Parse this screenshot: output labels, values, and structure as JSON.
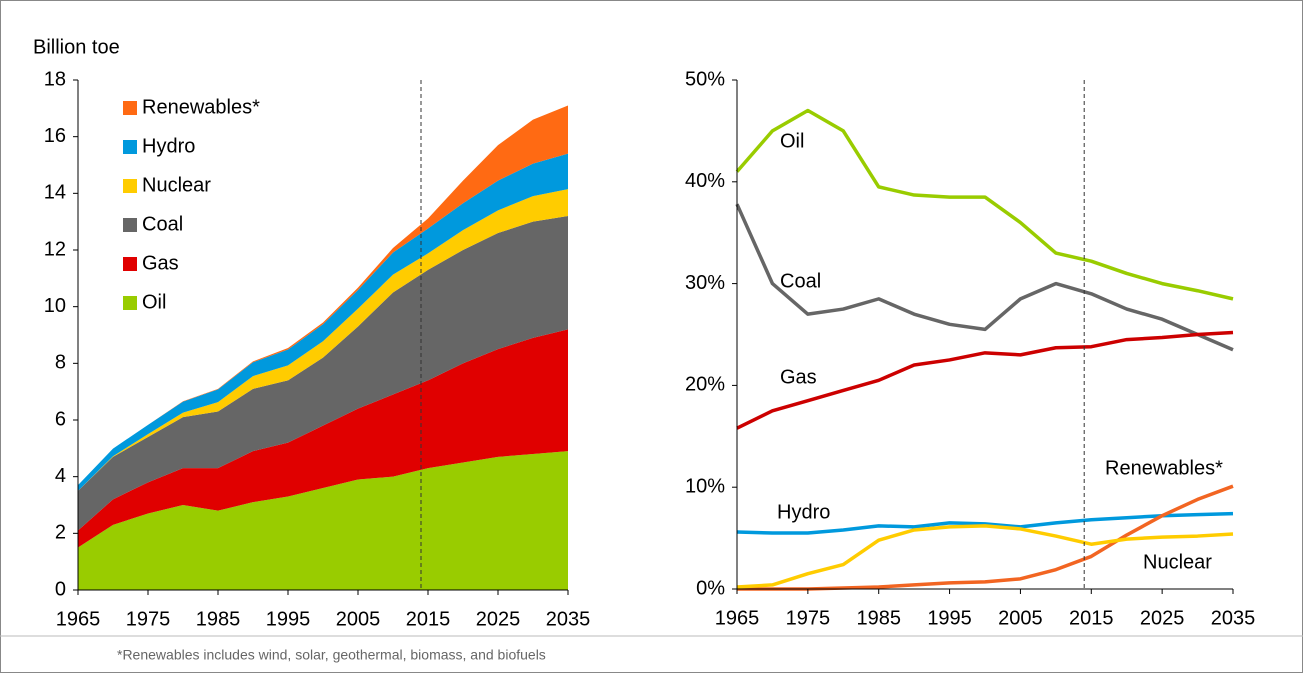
{
  "chart_data": [
    {
      "type": "area",
      "stacked": true,
      "y_label": "Billion toe",
      "x": [
        1965,
        1970,
        1975,
        1980,
        1985,
        1990,
        1995,
        2000,
        2005,
        2010,
        2015,
        2020,
        2025,
        2030,
        2035
      ],
      "xlim": [
        1965,
        2035
      ],
      "xticks": [
        1965,
        1975,
        1985,
        1995,
        2005,
        2015,
        2025,
        2035
      ],
      "ylim": [
        0,
        18
      ],
      "yticks": [
        0,
        2,
        4,
        6,
        8,
        10,
        12,
        14,
        16,
        18
      ],
      "vline": 2014,
      "legend": "upper left",
      "series": [
        {
          "name": "Oil",
          "color": "#99cc00",
          "values": [
            1.5,
            2.3,
            2.7,
            3.0,
            2.8,
            3.1,
            3.3,
            3.6,
            3.9,
            4.0,
            4.3,
            4.5,
            4.7,
            4.8,
            4.9
          ]
        },
        {
          "name": "Gas",
          "color": "#e00000",
          "values": [
            0.6,
            0.9,
            1.1,
            1.3,
            1.5,
            1.8,
            1.9,
            2.2,
            2.5,
            2.9,
            3.1,
            3.5,
            3.8,
            4.1,
            4.3
          ]
        },
        {
          "name": "Coal",
          "color": "#666666",
          "values": [
            1.4,
            1.5,
            1.6,
            1.8,
            2.0,
            2.2,
            2.2,
            2.4,
            2.9,
            3.6,
            3.9,
            4.0,
            4.1,
            4.1,
            4.0
          ]
        },
        {
          "name": "Nuclear",
          "color": "#ffcc00",
          "values": [
            0.0,
            0.02,
            0.1,
            0.16,
            0.33,
            0.45,
            0.53,
            0.58,
            0.63,
            0.63,
            0.58,
            0.7,
            0.8,
            0.9,
            0.95
          ]
        },
        {
          "name": "Hydro",
          "color": "#0099dd",
          "values": [
            0.2,
            0.27,
            0.33,
            0.39,
            0.45,
            0.49,
            0.56,
            0.6,
            0.66,
            0.78,
            0.88,
            0.95,
            1.05,
            1.15,
            1.25
          ]
        },
        {
          "name": "Renewables*",
          "color": "#ff6a13",
          "values": [
            0.0,
            0.0,
            0.0,
            0.01,
            0.02,
            0.03,
            0.05,
            0.06,
            0.08,
            0.16,
            0.35,
            0.8,
            1.25,
            1.55,
            1.7
          ]
        }
      ]
    },
    {
      "type": "line",
      "x": [
        1965,
        1970,
        1975,
        1980,
        1985,
        1990,
        1995,
        2000,
        2005,
        2010,
        2015,
        2020,
        2025,
        2030,
        2035
      ],
      "xlim": [
        1965,
        2035
      ],
      "xticks": [
        1965,
        1975,
        1985,
        1995,
        2005,
        2015,
        2025,
        2035
      ],
      "ylim": [
        0,
        50
      ],
      "yticks": [
        {
          "value": 0,
          "label": "0%"
        },
        {
          "value": 10,
          "label": "10%"
        },
        {
          "value": 20,
          "label": "20%"
        },
        {
          "value": 30,
          "label": "30%"
        },
        {
          "value": 40,
          "label": "40%"
        },
        {
          "value": 50,
          "label": "50%"
        }
      ],
      "vline": 2014,
      "series": [
        {
          "name": "Oil",
          "color": "#99cc00",
          "values": [
            41,
            45,
            47,
            45,
            39.5,
            38.7,
            38.5,
            38.5,
            36,
            33,
            32.2,
            31,
            30,
            29.3,
            28.5
          ]
        },
        {
          "name": "Coal",
          "color": "#666666",
          "values": [
            37.8,
            30,
            27,
            27.5,
            28.5,
            27,
            26,
            25.5,
            28.5,
            30,
            29,
            27.5,
            26.5,
            25,
            23.5
          ]
        },
        {
          "name": "Gas",
          "color": "#cc0000",
          "values": [
            15.8,
            17.5,
            18.5,
            19.5,
            20.5,
            22,
            22.5,
            23.2,
            23,
            23.7,
            23.8,
            24.5,
            24.7,
            25,
            25.2
          ]
        },
        {
          "name": "Hydro",
          "color": "#0099dd",
          "values": [
            5.6,
            5.5,
            5.5,
            5.8,
            6.2,
            6.1,
            6.5,
            6.4,
            6.1,
            6.5,
            6.8,
            7.0,
            7.2,
            7.3,
            7.4
          ]
        },
        {
          "name": "Renewables*",
          "color": "#f26522",
          "values": [
            0,
            0,
            0,
            0.1,
            0.2,
            0.4,
            0.6,
            0.7,
            1.0,
            1.9,
            3.2,
            5.3,
            7.2,
            8.8,
            10.1
          ]
        },
        {
          "name": "Nuclear",
          "color": "#ffcc00",
          "values": [
            0.2,
            0.4,
            1.5,
            2.4,
            4.8,
            5.8,
            6.1,
            6.2,
            5.9,
            5.2,
            4.4,
            4.9,
            5.1,
            5.2,
            5.4
          ]
        }
      ]
    }
  ],
  "footnote": "*Renewables includes wind, solar, geothermal, biomass, and biofuels"
}
